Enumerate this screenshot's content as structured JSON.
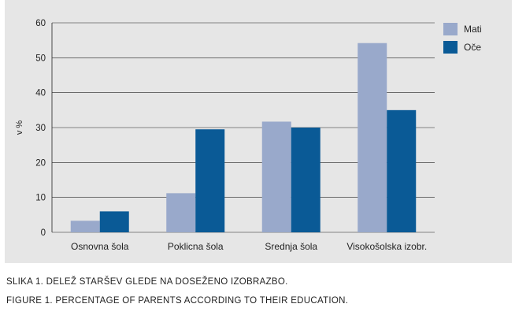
{
  "chart_data": {
    "type": "bar",
    "title": "",
    "xlabel": "",
    "ylabel": "v %",
    "ylim": [
      0,
      60
    ],
    "yticks": [
      0,
      10,
      20,
      30,
      40,
      50,
      60
    ],
    "grid": true,
    "legend_position": "top-right",
    "categories": [
      "Osnovna šola",
      "Poklicna šola",
      "Srednja šola",
      "Visokošolska izobr."
    ],
    "series": [
      {
        "name": "Mati",
        "color": "#99a9cb",
        "values": [
          3.3,
          11.2,
          31.7,
          54.2
        ]
      },
      {
        "name": "Oče",
        "color": "#0a5a96",
        "values": [
          6.0,
          29.5,
          30.0,
          35.0
        ]
      }
    ]
  },
  "captions": {
    "line1": "SLIKA 1. DELEŽ STARŠEV GLEDE NA DOSEŽENO IZOBRAZBO.",
    "line2": "FIGURE 1. PERCENTAGE OF PARENTS ACCORDING TO THEIR EDUCATION."
  }
}
